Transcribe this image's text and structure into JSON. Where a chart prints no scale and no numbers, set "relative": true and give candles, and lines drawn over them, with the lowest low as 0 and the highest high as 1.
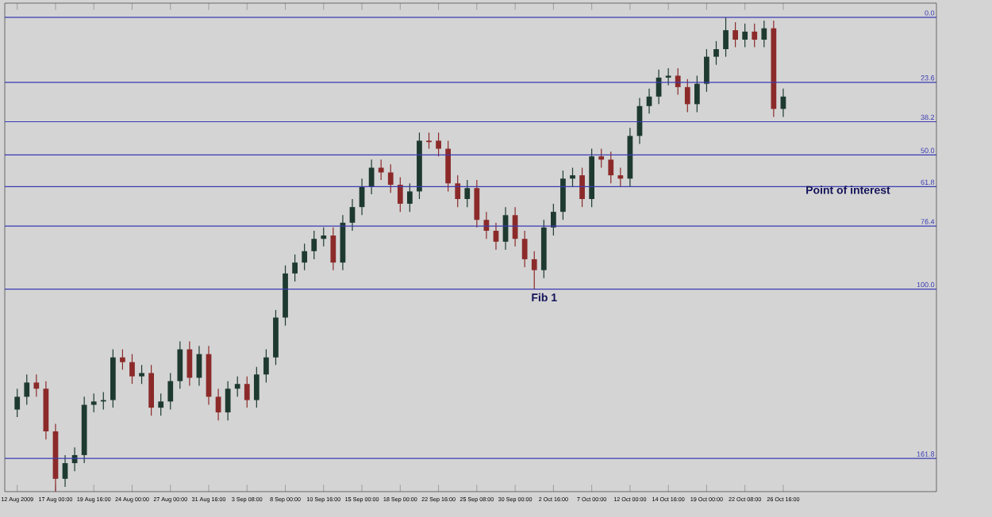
{
  "chart_data": {
    "type": "candlestick",
    "relative": true,
    "categories": [
      "12 Aug 2009",
      null,
      null,
      null,
      "17 Aug 00:00",
      null,
      null,
      null,
      "19 Aug 16:00",
      null,
      null,
      null,
      "24 Aug 00:00",
      null,
      null,
      null,
      "27 Aug 00:00",
      null,
      null,
      null,
      "31 Aug 16:00",
      null,
      null,
      null,
      "3 Sep 08:00",
      null,
      null,
      null,
      "8 Sep 00:00",
      null,
      null,
      null,
      "10 Sep 16:00",
      null,
      null,
      null,
      "15 Sep 00:00",
      null,
      null,
      null,
      "18 Sep 00:00",
      null,
      null,
      null,
      "22 Sep 16:00",
      null,
      null,
      null,
      "25 Sep 08:00",
      null,
      null,
      null,
      "30 Sep 00:00",
      null,
      null,
      null,
      "2 Oct 16:00",
      null,
      null,
      null,
      "7 Oct 00:00",
      null,
      null,
      null,
      "12 Oct 00:00",
      null,
      null,
      null,
      "14 Oct 16:00",
      null,
      null,
      null,
      "19 Oct 00:00",
      null,
      null,
      null,
      "22 Oct 08:00",
      null,
      null,
      null,
      "26 Oct 16:00"
    ],
    "ohlc": [
      [
        0.173,
        0.217,
        0.157,
        0.2
      ],
      [
        0.2,
        0.247,
        0.183,
        0.23
      ],
      [
        0.23,
        0.247,
        0.2,
        0.217
      ],
      [
        0.217,
        0.233,
        0.11,
        0.127
      ],
      [
        0.127,
        0.143,
        0,
        0.027
      ],
      [
        0.027,
        0.077,
        0.01,
        0.06
      ],
      [
        0.06,
        0.093,
        0.043,
        0.077
      ],
      [
        0.077,
        0.2,
        0.06,
        0.183
      ],
      [
        0.183,
        0.207,
        0.167,
        0.19
      ],
      [
        0.19,
        0.21,
        0.173,
        0.193
      ],
      [
        0.193,
        0.3,
        0.177,
        0.283
      ],
      [
        0.283,
        0.3,
        0.257,
        0.273
      ],
      [
        0.273,
        0.29,
        0.227,
        0.243
      ],
      [
        0.243,
        0.267,
        0.227,
        0.25
      ],
      [
        0.25,
        0.267,
        0.16,
        0.177
      ],
      [
        0.177,
        0.207,
        0.16,
        0.19
      ],
      [
        0.19,
        0.25,
        0.173,
        0.233
      ],
      [
        0.233,
        0.317,
        0.217,
        0.3
      ],
      [
        0.3,
        0.317,
        0.223,
        0.24
      ],
      [
        0.24,
        0.307,
        0.223,
        0.29
      ],
      [
        0.29,
        0.307,
        0.183,
        0.2
      ],
      [
        0.2,
        0.217,
        0.15,
        0.167
      ],
      [
        0.167,
        0.233,
        0.15,
        0.217
      ],
      [
        0.217,
        0.243,
        0.2,
        0.227
      ],
      [
        0.227,
        0.243,
        0.177,
        0.193
      ],
      [
        0.193,
        0.263,
        0.177,
        0.247
      ],
      [
        0.247,
        0.3,
        0.23,
        0.283
      ],
      [
        0.283,
        0.383,
        0.267,
        0.367
      ],
      [
        0.367,
        0.477,
        0.35,
        0.46
      ],
      [
        0.46,
        0.5,
        0.443,
        0.483
      ],
      [
        0.483,
        0.523,
        0.467,
        0.507
      ],
      [
        0.507,
        0.55,
        0.49,
        0.533
      ],
      [
        0.533,
        0.557,
        0.517,
        0.54
      ],
      [
        0.54,
        0.557,
        0.467,
        0.483
      ],
      [
        0.483,
        0.583,
        0.467,
        0.567
      ],
      [
        0.567,
        0.617,
        0.55,
        0.6
      ],
      [
        0.6,
        0.66,
        0.583,
        0.643
      ],
      [
        0.643,
        0.7,
        0.627,
        0.683
      ],
      [
        0.683,
        0.7,
        0.657,
        0.673
      ],
      [
        0.673,
        0.69,
        0.63,
        0.647
      ],
      [
        0.647,
        0.663,
        0.59,
        0.607
      ],
      [
        0.607,
        0.65,
        0.59,
        0.633
      ],
      [
        0.633,
        0.757,
        0.617,
        0.74
      ],
      [
        0.74,
        0.757,
        0.723,
        0.737
      ],
      [
        0.74,
        0.757,
        0.707,
        0.723
      ],
      [
        0.723,
        0.74,
        0.633,
        0.65
      ],
      [
        0.65,
        0.667,
        0.6,
        0.617
      ],
      [
        0.617,
        0.657,
        0.6,
        0.64
      ],
      [
        0.64,
        0.657,
        0.557,
        0.573
      ],
      [
        0.573,
        0.59,
        0.533,
        0.55
      ],
      [
        0.55,
        0.567,
        0.51,
        0.527
      ],
      [
        0.527,
        0.6,
        0.51,
        0.583
      ],
      [
        0.583,
        0.6,
        0.517,
        0.533
      ],
      [
        0.533,
        0.55,
        0.473,
        0.49
      ],
      [
        0.49,
        0.507,
        0.427,
        0.467
      ],
      [
        0.467,
        0.573,
        0.45,
        0.557
      ],
      [
        0.557,
        0.607,
        0.54,
        0.59
      ],
      [
        0.59,
        0.677,
        0.573,
        0.66
      ],
      [
        0.66,
        0.683,
        0.643,
        0.667
      ],
      [
        0.667,
        0.683,
        0.6,
        0.617
      ],
      [
        0.617,
        0.723,
        0.6,
        0.707
      ],
      [
        0.707,
        0.723,
        0.683,
        0.7
      ],
      [
        0.7,
        0.717,
        0.65,
        0.667
      ],
      [
        0.667,
        0.683,
        0.643,
        0.66
      ],
      [
        0.66,
        0.767,
        0.643,
        0.75
      ],
      [
        0.75,
        0.83,
        0.733,
        0.813
      ],
      [
        0.813,
        0.85,
        0.797,
        0.833
      ],
      [
        0.833,
        0.89,
        0.817,
        0.873
      ],
      [
        0.873,
        0.893,
        0.857,
        0.877
      ],
      [
        0.877,
        0.893,
        0.837,
        0.853
      ],
      [
        0.853,
        0.87,
        0.8,
        0.817
      ],
      [
        0.817,
        0.877,
        0.8,
        0.86
      ],
      [
        0.86,
        0.933,
        0.843,
        0.917
      ],
      [
        0.917,
        0.95,
        0.9,
        0.933
      ],
      [
        0.933,
        1,
        0.917,
        0.973
      ],
      [
        0.973,
        0.99,
        0.937,
        0.953
      ],
      [
        0.953,
        0.987,
        0.937,
        0.97
      ],
      [
        0.97,
        0.987,
        0.937,
        0.953
      ],
      [
        0.953,
        0.993,
        0.937,
        0.977
      ],
      [
        0.977,
        0.993,
        0.79,
        0.807
      ],
      [
        0.807,
        0.85,
        0.79,
        0.833
      ]
    ],
    "ref_lines": [
      {
        "axis": "y",
        "value": 1.0,
        "color": "#3a3ab4"
      },
      {
        "axis": "y",
        "value": 0.863,
        "color": "#3a3ab4"
      },
      {
        "axis": "y",
        "value": 0.78,
        "color": "#3a3ab4"
      },
      {
        "axis": "y",
        "value": 0.71,
        "color": "#3a3ab4"
      },
      {
        "axis": "y",
        "value": 0.643,
        "color": "#3a3ab4"
      },
      {
        "axis": "y",
        "value": 0.56,
        "color": "#3a3ab4"
      },
      {
        "axis": "y",
        "value": 0.427,
        "color": "#3a3ab4"
      },
      {
        "axis": "y",
        "value": 0.07,
        "color": "#3a3ab4"
      }
    ],
    "annotations": [
      "Fib 1",
      "Point of interest",
      {
        "text": "0.0",
        "y": 1.0
      },
      {
        "text": "23.6",
        "y": 0.863
      },
      {
        "text": "38.2",
        "y": 0.78
      },
      {
        "text": "50.0",
        "y": 0.71
      },
      {
        "text": "61.8",
        "y": 0.643
      },
      {
        "text": "76.4",
        "y": 0.56
      },
      {
        "text": "100.0",
        "y": 0.427
      },
      {
        "text": "161.8",
        "y": 0.07
      }
    ]
  }
}
